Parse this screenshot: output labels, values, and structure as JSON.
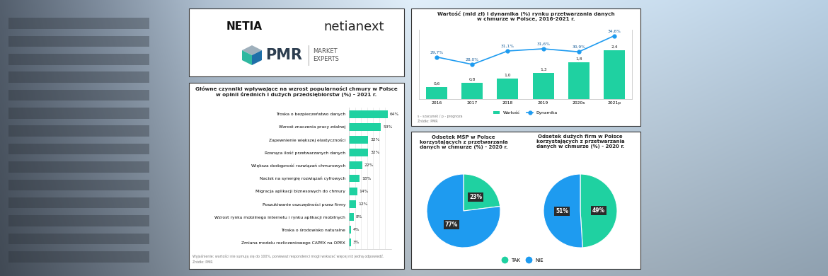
{
  "logos": {
    "netia": "NETIA",
    "netianext": "netianext",
    "pmr": "PMR",
    "pmr_tagline": "MARKET\nEXPERTS"
  },
  "chart_data": [
    {
      "type": "bar",
      "orientation": "horizontal",
      "title": "Główne czynniki wpływające na wzrost popularności chmury w Polsce\nw opinii średnich i dużych przedsiębiorstw (%) - 2021 r.",
      "categories": [
        "Troska o bezpieczeństwo danych",
        "Wzrost znaczenia pracy zdalnej",
        "Zapewnienie większej elastyczności",
        "Rosnąca ilość przetwarzanych danych",
        "Większa dostępność rozwiązań chmurowych",
        "Nacisk na synergię rozwiązań cyfrowych",
        "Migracja aplikacji biznesowych do chmury",
        "Poszukiwanie oszczędności przez firmy",
        "Wzrost rynku mobilnego internetu i rynku aplikacji mobilnych",
        "Troska o środowisko naturalne",
        "Zmiana modelu rozliczeniowego CAPEX na OPEX"
      ],
      "values": [
        64,
        53,
        32,
        32,
        22,
        18,
        14,
        12,
        8,
        4,
        3
      ],
      "value_labels": [
        "64%",
        "53%",
        "32%",
        "32%",
        "22%",
        "18%",
        "14%",
        "12%",
        "8%",
        "4%",
        "3%"
      ],
      "data_labels": true,
      "color": "#1fd1a1",
      "xlim": [
        0,
        70
      ],
      "xticks": [
        0,
        10,
        20,
        30,
        40,
        50,
        60,
        70
      ],
      "grid": true,
      "tick_labels": "y",
      "notes": [
        "Wyjaśnienie: wartości nie sumują się do 100%, ponieważ respondenci mogli wskazać więcej niż jedną odpowiedź.",
        "Źródło: PMR"
      ]
    },
    {
      "type": "bar",
      "title": "Wartość (mld zł) i dynamika (%) rynku przetwarzania danych\nw chmurze w Polsce, 2016-2021 r.",
      "categories": [
        "2016",
        "2017",
        "2018",
        "2019",
        "2020s",
        "2021p"
      ],
      "series": [
        {
          "name": "Wartość",
          "type": "bar",
          "color": "#1fd1a1",
          "values": [
            0.6,
            0.8,
            1.0,
            1.3,
            1.8,
            2.4
          ],
          "value_labels": [
            "0,6",
            "0,8",
            "1,0",
            "1,3",
            "1,8",
            "2,4"
          ]
        },
        {
          "name": "Dynamika",
          "type": "line",
          "axis": "y2",
          "color": "#1e9bf0",
          "marker": "circle",
          "values": [
            29.7,
            28.0,
            31.1,
            31.6,
            30.9,
            34.6
          ],
          "value_labels": [
            "29,7%",
            "28,0%",
            "31,1%",
            "31,6%",
            "30,9%",
            "34,6%"
          ]
        }
      ],
      "ylim": [
        0,
        3.4
      ],
      "yticks": [],
      "y2lim": [
        20,
        36
      ],
      "y2ticks": [],
      "data_labels": true,
      "tick_labels": "x",
      "grid": false,
      "legend": "upper center",
      "notes": [
        "s - szacunek / p - prognoza",
        "Źródło: PMR"
      ]
    },
    {
      "type": "pie",
      "title": "Odsetek MŚP w Polsce\nkorzystających z przetwarzania\ndanych w chmurze (%) - 2020 r.",
      "categories": [
        "TAK",
        "NIE"
      ],
      "values": [
        23,
        77
      ],
      "value_labels": [
        "23%",
        "77%"
      ],
      "colors": [
        "#1fd1a1",
        "#1e9bf0"
      ],
      "data_labels": true,
      "legend": "lower center"
    },
    {
      "type": "pie",
      "title": "Odsetek dużych firm w Polsce\nkorzystających z przetwarzania\ndanych w chmurze (%) - 2020 r.",
      "categories": [
        "TAK",
        "NIE"
      ],
      "values": [
        49,
        51
      ],
      "value_labels": [
        "49%",
        "51%"
      ],
      "colors": [
        "#1fd1a1",
        "#1e9bf0"
      ],
      "data_labels": true
    }
  ]
}
